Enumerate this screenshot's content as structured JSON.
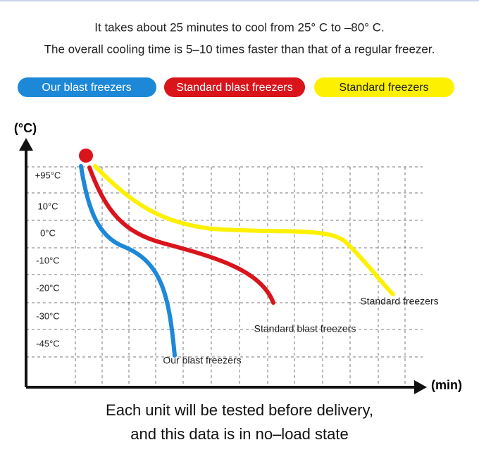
{
  "header": {
    "line1": "It takes about 25 minutes to cool from 25°  C to –80°  C.",
    "line2": "The overall cooling time is 5–10 times faster than that of a regular freezer."
  },
  "legend": [
    "Our blast freezers",
    "Standard blast freezers",
    "Standard freezers"
  ],
  "axis": {
    "y_label": "(°C)",
    "x_label": "(min)",
    "y_ticks": [
      "+95°C",
      "10°C",
      "0°C",
      "-10°C",
      "-20°C",
      "-30°C",
      "-45°C"
    ]
  },
  "curve_labels": [
    "Our blast freezers",
    "Standard blast freezers",
    "Standard freezers"
  ],
  "footer": {
    "line1": "Each unit will be tested before delivery,",
    "line2": "and this data is in no–load state"
  }
}
